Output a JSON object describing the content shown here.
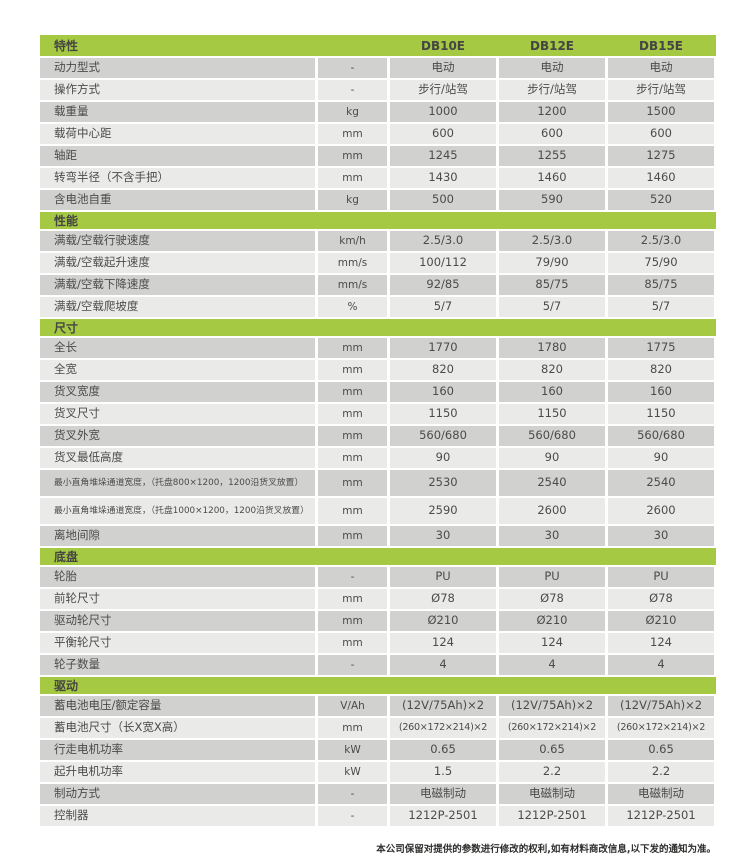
{
  "colors": {
    "green": "#a5c943",
    "row_dark": "#d1d1cf",
    "row_light": "#eaeae8",
    "text": "#4b4b49"
  },
  "table": {
    "header": {
      "feature_label": "特性",
      "unit_label": "",
      "models": [
        "DB10E",
        "DB12E",
        "DB15E"
      ]
    },
    "sections": [
      {
        "title": "",
        "rows": [
          {
            "label": "动力型式",
            "unit": "-",
            "values": [
              "电动",
              "电动",
              "电动"
            ]
          },
          {
            "label": "操作方式",
            "unit": "-",
            "values": [
              "步行/站驾",
              "步行/站驾",
              "步行/站驾"
            ]
          },
          {
            "label": "载重量",
            "unit": "kg",
            "values": [
              "1000",
              "1200",
              "1500"
            ]
          },
          {
            "label": "载荷中心距",
            "unit": "mm",
            "values": [
              "600",
              "600",
              "600"
            ]
          },
          {
            "label": "轴距",
            "unit": "mm",
            "values": [
              "1245",
              "1255",
              "1275"
            ]
          },
          {
            "label": "转弯半径（不含手把）",
            "unit": "mm",
            "values": [
              "1430",
              "1460",
              "1460"
            ]
          },
          {
            "label": "含电池自重",
            "unit": "kg",
            "values": [
              "500",
              "590",
              "520"
            ]
          }
        ]
      },
      {
        "title": "性能",
        "rows": [
          {
            "label": "满载/空载行驶速度",
            "unit": "km/h",
            "values": [
              "2.5/3.0",
              "2.5/3.0",
              "2.5/3.0"
            ]
          },
          {
            "label": "满载/空载起升速度",
            "unit": "mm/s",
            "values": [
              "100/112",
              "79/90",
              "75/90"
            ]
          },
          {
            "label": "满载/空载下降速度",
            "unit": "mm/s",
            "values": [
              "92/85",
              "85/75",
              "85/75"
            ]
          },
          {
            "label": "满载/空载爬坡度",
            "unit": "%",
            "values": [
              "5/7",
              "5/7",
              "5/7"
            ]
          }
        ]
      },
      {
        "title": "尺寸",
        "rows": [
          {
            "label": "全长",
            "unit": "mm",
            "values": [
              "1770",
              "1780",
              "1775"
            ]
          },
          {
            "label": "全宽",
            "unit": "mm",
            "values": [
              "820",
              "820",
              "820"
            ]
          },
          {
            "label": "货叉宽度",
            "unit": "mm",
            "values": [
              "160",
              "160",
              "160"
            ]
          },
          {
            "label": "货叉尺寸",
            "unit": "mm",
            "values": [
              "1150",
              "1150",
              "1150"
            ]
          },
          {
            "label": "货叉外宽",
            "unit": "mm",
            "values": [
              "560/680",
              "560/680",
              "560/680"
            ]
          },
          {
            "label": "货叉最低高度",
            "unit": "mm",
            "values": [
              "90",
              "90",
              "90"
            ]
          },
          {
            "label": "最小直角堆垛通道宽度，（托盘800×1200，1200沿货叉放置）",
            "unit": "mm",
            "values": [
              "2530",
              "2540",
              "2540"
            ],
            "small": true
          },
          {
            "label": "最小直角堆垛通道宽度，（托盘1000×1200，1200沿货叉放置）",
            "unit": "mm",
            "values": [
              "2590",
              "2600",
              "2600"
            ],
            "small": true
          },
          {
            "label": "离地间隙",
            "unit": "mm",
            "values": [
              "30",
              "30",
              "30"
            ]
          }
        ]
      },
      {
        "title": "底盘",
        "rows": [
          {
            "label": "轮胎",
            "unit": "-",
            "values": [
              "PU",
              "PU",
              "PU"
            ]
          },
          {
            "label": "前轮尺寸",
            "unit": "mm",
            "values": [
              "Ø78",
              "Ø78",
              "Ø78"
            ]
          },
          {
            "label": "驱动轮尺寸",
            "unit": "mm",
            "values": [
              "Ø210",
              "Ø210",
              "Ø210"
            ]
          },
          {
            "label": "平衡轮尺寸",
            "unit": "mm",
            "values": [
              "124",
              "124",
              "124"
            ]
          },
          {
            "label": "轮子数量",
            "unit": "-",
            "values": [
              "4",
              "4",
              "4"
            ]
          }
        ]
      },
      {
        "title": "驱动",
        "rows": [
          {
            "label": "蓄电池电压/额定容量",
            "unit": "V/Ah",
            "values": [
              "(12V/75Ah)×2",
              "(12V/75Ah)×2",
              "(12V/75Ah)×2"
            ]
          },
          {
            "label": "蓄电池尺寸（长X宽X高）",
            "unit": "mm",
            "values": [
              "(260×172×214)×2",
              "(260×172×214)×2",
              "(260×172×214)×2"
            ],
            "value_small": true
          },
          {
            "label": "行走电机功率",
            "unit": "kW",
            "values": [
              "0.65",
              "0.65",
              "0.65"
            ]
          },
          {
            "label": "起升电机功率",
            "unit": "kW",
            "values": [
              "1.5",
              "2.2",
              "2.2"
            ]
          },
          {
            "label": "制动方式",
            "unit": "-",
            "values": [
              "电磁制动",
              "电磁制动",
              "电磁制动"
            ]
          },
          {
            "label": "控制器",
            "unit": "-",
            "values": [
              "1212P-2501",
              "1212P-2501",
              "1212P-2501"
            ]
          }
        ]
      }
    ],
    "footer_note": "本公司保留对提供的参数进行修改的权利,如有材料商改信息,以下发的通知为准。"
  }
}
